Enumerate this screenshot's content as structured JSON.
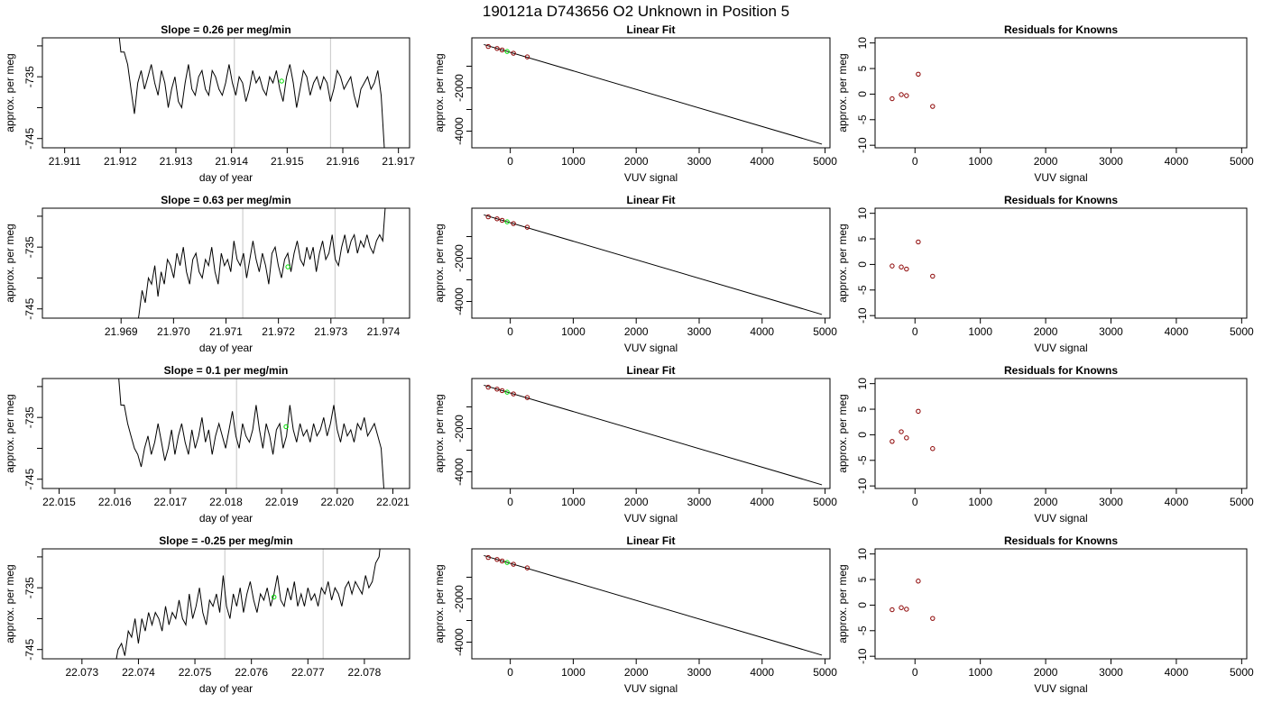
{
  "figure": {
    "suptitle": "190121a      D743656   O2 Unknown in Position  5"
  },
  "chart_data": [
    {
      "type": "line",
      "panel": "trace",
      "row": 0,
      "title": "Slope =  0.26  per meg/min",
      "xlabel": "day of year",
      "ylabel": "approx. per meg",
      "xlim": [
        21.9106,
        21.9172
      ],
      "ylim": [
        -746.5,
        -728.7
      ],
      "xticks": [
        21.911,
        21.912,
        21.913,
        21.914,
        21.915,
        21.916,
        21.917
      ],
      "xtick_labels": [
        "21.911",
        "21.912",
        "21.913",
        "21.914",
        "21.915",
        "21.916",
        "21.917"
      ],
      "yticks": [
        -745,
        -740,
        -735,
        -730
      ],
      "ytick_labels": [
        "-745",
        "",
        "-735",
        ""
      ],
      "series": [
        {
          "x_start": 21.91195,
          "x_end": 21.91675,
          "y": [
            -726,
            -731,
            -731,
            -733,
            -737,
            -741,
            -736,
            -734,
            -737,
            -735,
            -733,
            -736,
            -738,
            -734,
            -736,
            -740,
            -737,
            -735,
            -739,
            -740,
            -736,
            -733,
            -737,
            -738,
            -735,
            -734,
            -737,
            -738,
            -734,
            -735,
            -737,
            -738,
            -736,
            -733,
            -736,
            -738,
            -735,
            -736,
            -739,
            -737,
            -734,
            -736,
            -735,
            -737,
            -738,
            -735,
            -736,
            -734,
            -737,
            -739,
            -735,
            -733,
            -736,
            -740,
            -737,
            -734,
            -735,
            -738,
            -736,
            -735,
            -737,
            -735,
            -736,
            -739,
            -737,
            -734,
            -735,
            -737,
            -736,
            -735,
            -738,
            -740,
            -737,
            -736,
            -735,
            -737,
            -736,
            -734,
            -738,
            -747
          ]
        }
      ],
      "vlines": [
        21.91405,
        21.91578
      ],
      "unknown_point": {
        "x": 21.9149,
        "y": -735.7
      }
    },
    {
      "type": "line",
      "panel": "fit",
      "row": 0,
      "title": "Linear Fit",
      "xlabel": "VUV signal",
      "ylabel": "approx. per meg",
      "xlim": [
        -611,
        5078
      ],
      "ylim": [
        -4770,
        310
      ],
      "xticks": [
        0,
        1000,
        2000,
        3000,
        4000,
        5000
      ],
      "xtick_labels": [
        "0",
        "1000",
        "2000",
        "3000",
        "4000",
        "5000"
      ],
      "yticks": [
        -4000,
        -3000,
        -2000,
        -1000
      ],
      "ytick_labels": [
        "-4000",
        "",
        "-2000",
        ""
      ],
      "line": {
        "x": [
          -420,
          4950
        ],
        "y": [
          0,
          -4600
        ]
      },
      "knowns": {
        "x": [
          -350,
          -210,
          -130,
          50,
          270
        ],
        "y": [
          -90,
          -180,
          -250,
          -400,
          -570
        ]
      },
      "unknown": {
        "x": [
          -50
        ],
        "y": [
          -320
        ]
      }
    },
    {
      "type": "scatter",
      "panel": "residuals",
      "row": 0,
      "title": "Residuals for Knowns",
      "xlabel": "VUV signal",
      "ylabel": "approx. per meg",
      "xlim": [
        -611,
        5078
      ],
      "ylim": [
        -10.5,
        11
      ],
      "xticks": [
        0,
        1000,
        2000,
        3000,
        4000,
        5000
      ],
      "xtick_labels": [
        "0",
        "1000",
        "2000",
        "3000",
        "4000",
        "5000"
      ],
      "yticks": [
        -10,
        -5,
        0,
        5,
        10
      ],
      "ytick_labels": [
        "-10",
        "-5",
        "0",
        "5",
        "10"
      ],
      "x": [
        -350,
        -210,
        -130,
        50,
        270
      ],
      "y": [
        -0.9,
        -0.1,
        -0.3,
        3.9,
        -2.4
      ]
    },
    {
      "type": "line",
      "panel": "trace",
      "row": 1,
      "title": "Slope =  0.63  per meg/min",
      "xlabel": "day of year",
      "ylabel": "approx. per meg",
      "xlim": [
        21.9675,
        21.9745
      ],
      "ylim": [
        -746.5,
        -728.7
      ],
      "xticks": [
        21.969,
        21.97,
        21.971,
        21.972,
        21.973,
        21.974
      ],
      "xtick_labels": [
        "21.969",
        "21.970",
        "21.971",
        "21.972",
        "21.973",
        "21.974"
      ],
      "yticks": [
        -745,
        -740,
        -735,
        -730
      ],
      "ytick_labels": [
        "-745",
        "",
        "-735",
        ""
      ],
      "series": [
        {
          "x_start": 21.96928,
          "x_end": 21.97405,
          "y": [
            -749,
            -746,
            -742,
            -744,
            -740,
            -741,
            -738,
            -743,
            -739,
            -741,
            -737,
            -738,
            -740,
            -736,
            -738,
            -735,
            -739,
            -741,
            -737,
            -736,
            -739,
            -740,
            -737,
            -738,
            -735,
            -739,
            -741,
            -736,
            -738,
            -737,
            -739,
            -734,
            -737,
            -738,
            -736,
            -740,
            -737,
            -734,
            -737,
            -739,
            -736,
            -738,
            -741,
            -736,
            -735,
            -738,
            -740,
            -737,
            -736,
            -739,
            -736,
            -734,
            -737,
            -738,
            -735,
            -737,
            -735,
            -739,
            -736,
            -734,
            -737,
            -736,
            -733,
            -737,
            -738,
            -735,
            -733,
            -736,
            -734,
            -733,
            -736,
            -734,
            -735,
            -733,
            -735,
            -736,
            -734,
            -733,
            -734,
            -727
          ]
        }
      ],
      "vlines": [
        21.97132,
        21.97308
      ],
      "unknown_point": {
        "x": 21.97218,
        "y": -738.2
      }
    },
    {
      "type": "line",
      "panel": "fit",
      "row": 1,
      "title": "Linear Fit",
      "xlabel": "VUV signal",
      "ylabel": "approx. per meg",
      "xlim": [
        -611,
        5078
      ],
      "ylim": [
        -4770,
        310
      ],
      "xticks": [
        0,
        1000,
        2000,
        3000,
        4000,
        5000
      ],
      "xtick_labels": [
        "0",
        "1000",
        "2000",
        "3000",
        "4000",
        "5000"
      ],
      "yticks": [
        -4000,
        -3000,
        -2000,
        -1000
      ],
      "ytick_labels": [
        "-4000",
        "",
        "-2000",
        ""
      ],
      "line": {
        "x": [
          -420,
          4950
        ],
        "y": [
          0,
          -4600
        ]
      },
      "knowns": {
        "x": [
          -350,
          -210,
          -130,
          50,
          270
        ],
        "y": [
          -90,
          -180,
          -250,
          -400,
          -570
        ]
      },
      "unknown": {
        "x": [
          -50
        ],
        "y": [
          -320
        ]
      }
    },
    {
      "type": "scatter",
      "panel": "residuals",
      "row": 1,
      "title": "Residuals for Knowns",
      "xlabel": "VUV signal",
      "ylabel": "approx. per meg",
      "xlim": [
        -611,
        5078
      ],
      "ylim": [
        -10.5,
        11
      ],
      "xticks": [
        0,
        1000,
        2000,
        3000,
        4000,
        5000
      ],
      "xtick_labels": [
        "0",
        "1000",
        "2000",
        "3000",
        "4000",
        "5000"
      ],
      "yticks": [
        -10,
        -5,
        0,
        5,
        10
      ],
      "ytick_labels": [
        "-10",
        "-5",
        "0",
        "5",
        "10"
      ],
      "x": [
        -350,
        -210,
        -130,
        50,
        270
      ],
      "y": [
        -0.3,
        -0.5,
        -0.9,
        4.4,
        -2.3
      ]
    },
    {
      "type": "line",
      "panel": "trace",
      "row": 2,
      "title": "Slope =  0.1  per meg/min",
      "xlabel": "day of year",
      "ylabel": "approx. per meg",
      "xlim": [
        22.0147,
        22.0213
      ],
      "ylim": [
        -746.5,
        -728.7
      ],
      "xticks": [
        22.015,
        22.016,
        22.017,
        22.018,
        22.019,
        22.02,
        22.021
      ],
      "xtick_labels": [
        "22.015",
        "22.016",
        "22.017",
        "22.018",
        "22.019",
        "22.020",
        "22.021"
      ],
      "yticks": [
        -745,
        -740,
        -735,
        -730
      ],
      "ytick_labels": [
        "-745",
        "",
        "-735",
        ""
      ],
      "series": [
        {
          "x_start": 22.01605,
          "x_end": 22.02085,
          "y": [
            -726,
            -733,
            -733,
            -736,
            -738,
            -740,
            -741,
            -743,
            -740,
            -738,
            -741,
            -739,
            -736,
            -739,
            -742,
            -740,
            -737,
            -741,
            -738,
            -736,
            -739,
            -741,
            -737,
            -740,
            -738,
            -735,
            -739,
            -737,
            -741,
            -738,
            -736,
            -738,
            -740,
            -737,
            -734,
            -738,
            -740,
            -736,
            -738,
            -739,
            -737,
            -733,
            -737,
            -740,
            -736,
            -738,
            -741,
            -737,
            -736,
            -740,
            -738,
            -733,
            -737,
            -739,
            -736,
            -738,
            -737,
            -739,
            -736,
            -738,
            -737,
            -735,
            -738,
            -736,
            -733,
            -737,
            -739,
            -736,
            -738,
            -737,
            -739,
            -736,
            -737,
            -735,
            -738,
            -737,
            -736,
            -738,
            -740,
            -748
          ]
        }
      ],
      "vlines": [
        22.01819,
        22.01995
      ],
      "unknown_point": {
        "x": 22.01908,
        "y": -736.5
      }
    },
    {
      "type": "line",
      "panel": "fit",
      "row": 2,
      "title": "Linear Fit",
      "xlabel": "VUV signal",
      "ylabel": "approx. per meg",
      "xlim": [
        -611,
        5078
      ],
      "ylim": [
        -4770,
        310
      ],
      "xticks": [
        0,
        1000,
        2000,
        3000,
        4000,
        5000
      ],
      "xtick_labels": [
        "0",
        "1000",
        "2000",
        "3000",
        "4000",
        "5000"
      ],
      "yticks": [
        -4000,
        -3000,
        -2000,
        -1000
      ],
      "ytick_labels": [
        "-4000",
        "",
        "-2000",
        ""
      ],
      "line": {
        "x": [
          -420,
          4950
        ],
        "y": [
          0,
          -4600
        ]
      },
      "knowns": {
        "x": [
          -350,
          -210,
          -130,
          50,
          270
        ],
        "y": [
          -90,
          -180,
          -250,
          -400,
          -570
        ]
      },
      "unknown": {
        "x": [
          -50
        ],
        "y": [
          -320
        ]
      }
    },
    {
      "type": "scatter",
      "panel": "residuals",
      "row": 2,
      "title": "Residuals for Knowns",
      "xlabel": "VUV signal",
      "ylabel": "approx. per meg",
      "xlim": [
        -611,
        5078
      ],
      "ylim": [
        -10.5,
        11
      ],
      "xticks": [
        0,
        1000,
        2000,
        3000,
        4000,
        5000
      ],
      "xtick_labels": [
        "0",
        "1000",
        "2000",
        "3000",
        "4000",
        "5000"
      ],
      "yticks": [
        -10,
        -5,
        0,
        5,
        10
      ],
      "ytick_labels": [
        "-10",
        "-5",
        "0",
        "5",
        "10"
      ],
      "x": [
        -350,
        -210,
        -130,
        50,
        270
      ],
      "y": [
        -1.3,
        0.6,
        -0.6,
        4.6,
        -2.7
      ]
    },
    {
      "type": "line",
      "panel": "trace",
      "row": 3,
      "title": "Slope =  -0.25  per meg/min",
      "xlabel": "day of year",
      "ylabel": "approx. per meg",
      "xlim": [
        22.0723,
        22.0788
      ],
      "ylim": [
        -746.5,
        -728.7
      ],
      "xticks": [
        22.073,
        22.074,
        22.075,
        22.076,
        22.077,
        22.078
      ],
      "xtick_labels": [
        "22.073",
        "22.074",
        "22.075",
        "22.076",
        "22.077",
        "22.078"
      ],
      "yticks": [
        -745,
        -740,
        -735,
        -730
      ],
      "ytick_labels": [
        "-745",
        "",
        "-735",
        ""
      ],
      "series": [
        {
          "x_start": 22.07358,
          "x_end": 22.07832,
          "y": [
            -748,
            -745,
            -744,
            -746,
            -742,
            -743,
            -740,
            -744,
            -740,
            -742,
            -739,
            -741,
            -739,
            -740,
            -742,
            -738,
            -741,
            -739,
            -740,
            -737,
            -740,
            -741,
            -736,
            -740,
            -738,
            -735,
            -739,
            -741,
            -737,
            -738,
            -736,
            -739,
            -733,
            -738,
            -740,
            -736,
            -738,
            -735,
            -739,
            -736,
            -734,
            -737,
            -739,
            -736,
            -737,
            -735,
            -738,
            -736,
            -733,
            -737,
            -738,
            -735,
            -737,
            -734,
            -738,
            -736,
            -738,
            -735,
            -737,
            -736,
            -738,
            -735,
            -736,
            -734,
            -737,
            -735,
            -736,
            -738,
            -735,
            -734,
            -736,
            -734,
            -735,
            -736,
            -733,
            -735,
            -734,
            -731,
            -730,
            -725
          ]
        }
      ],
      "vlines": [
        22.07553,
        22.07727
      ],
      "unknown_point": {
        "x": 22.0764,
        "y": -736.5
      }
    },
    {
      "type": "line",
      "panel": "fit",
      "row": 3,
      "title": "Linear Fit",
      "xlabel": "VUV signal",
      "ylabel": "approx. per meg",
      "xlim": [
        -611,
        5078
      ],
      "ylim": [
        -4770,
        310
      ],
      "xticks": [
        0,
        1000,
        2000,
        3000,
        4000,
        5000
      ],
      "xtick_labels": [
        "0",
        "1000",
        "2000",
        "3000",
        "4000",
        "5000"
      ],
      "yticks": [
        -4000,
        -3000,
        -2000,
        -1000
      ],
      "ytick_labels": [
        "-4000",
        "",
        "-2000",
        ""
      ],
      "line": {
        "x": [
          -420,
          4950
        ],
        "y": [
          0,
          -4600
        ]
      },
      "knowns": {
        "x": [
          -350,
          -210,
          -130,
          50,
          270
        ],
        "y": [
          -90,
          -180,
          -250,
          -400,
          -570
        ]
      },
      "unknown": {
        "x": [
          -50
        ],
        "y": [
          -320
        ]
      }
    },
    {
      "type": "scatter",
      "panel": "residuals",
      "row": 3,
      "title": "Residuals for Knowns",
      "xlabel": "VUV signal",
      "ylabel": "approx. per meg",
      "xlim": [
        -611,
        5078
      ],
      "ylim": [
        -10.5,
        11
      ],
      "xticks": [
        0,
        1000,
        2000,
        3000,
        4000,
        5000
      ],
      "xtick_labels": [
        "0",
        "1000",
        "2000",
        "3000",
        "4000",
        "5000"
      ],
      "yticks": [
        -10,
        -5,
        0,
        5,
        10
      ],
      "ytick_labels": [
        "-10",
        "-5",
        "0",
        "5",
        "10"
      ],
      "x": [
        -350,
        -210,
        -130,
        50,
        270
      ],
      "y": [
        -0.9,
        -0.5,
        -0.8,
        4.7,
        -2.6
      ]
    }
  ]
}
